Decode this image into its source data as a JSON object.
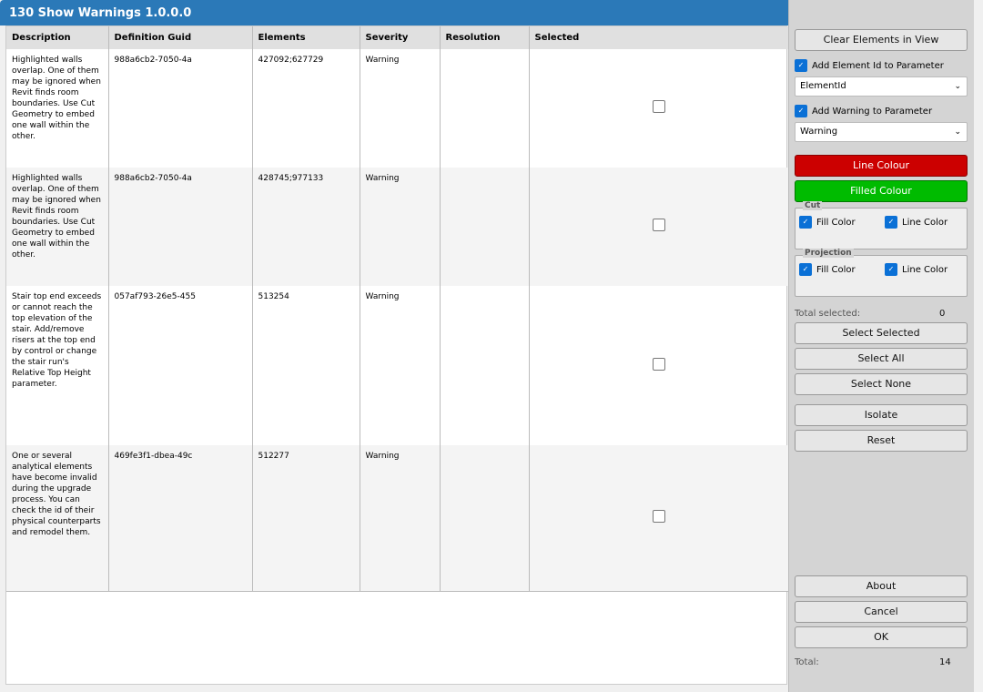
{
  "title": "130 Show Warnings  1.0.0.0",
  "columns": [
    "Description",
    "Definition Guid",
    "Elements",
    "Severity",
    "Resolution",
    "Selected"
  ],
  "rows": [
    {
      "description": "Highlighted walls overlap. One of them may be ignored when Revit finds room boundaries. Use Cut Geometry to embed one wall within the other.",
      "guid": "988a6cb2-7050-4a",
      "elements": "427092;627729",
      "severity": "Warning",
      "resolution": "",
      "selected": false
    },
    {
      "description": "Highlighted walls overlap. One of them may be ignored when Revit finds room boundaries. Use Cut Geometry to embed one wall within the other.",
      "guid": "988a6cb2-7050-4a",
      "elements": "428745;977133",
      "severity": "Warning",
      "resolution": "",
      "selected": false
    },
    {
      "description": "Stair top end exceeds or cannot reach the top elevation of the stair. Add/remove risers at the top end by control or change the stair run's Relative Top Height parameter.",
      "guid": "057af793-26e5-455",
      "elements": "513254",
      "severity": "Warning",
      "resolution": "",
      "selected": false
    },
    {
      "description": "One or several analytical elements have become invalid during the upgrade process. You can check the id of their physical counterparts and remodel them.",
      "guid": "469fe3f1-dbea-49c",
      "elements": "512277",
      "severity": "Warning",
      "resolution": "",
      "selected": false
    }
  ],
  "side": {
    "clear": "Clear Elements in View",
    "add_element_id": "Add Element Id to Parameter",
    "element_param": "ElementId",
    "add_warning": "Add Warning to Parameter",
    "warning_param": "Warning",
    "line_colour": "Line Colour",
    "line_colour_hex": "#cc0000",
    "filled_colour": "Filled Colour",
    "filled_colour_hex": "#00bb00",
    "cut": "Cut",
    "projection": "Projection",
    "fill_color": "Fill Color",
    "line_color": "Line Color",
    "total_selected_label": "Total selected:",
    "total_selected": "0",
    "select_selected": "Select Selected",
    "select_all": "Select All",
    "select_none": "Select None",
    "isolate": "Isolate",
    "reset": "Reset",
    "about": "About",
    "cancel": "Cancel",
    "ok": "OK",
    "total_label": "Total:",
    "total": "14"
  }
}
